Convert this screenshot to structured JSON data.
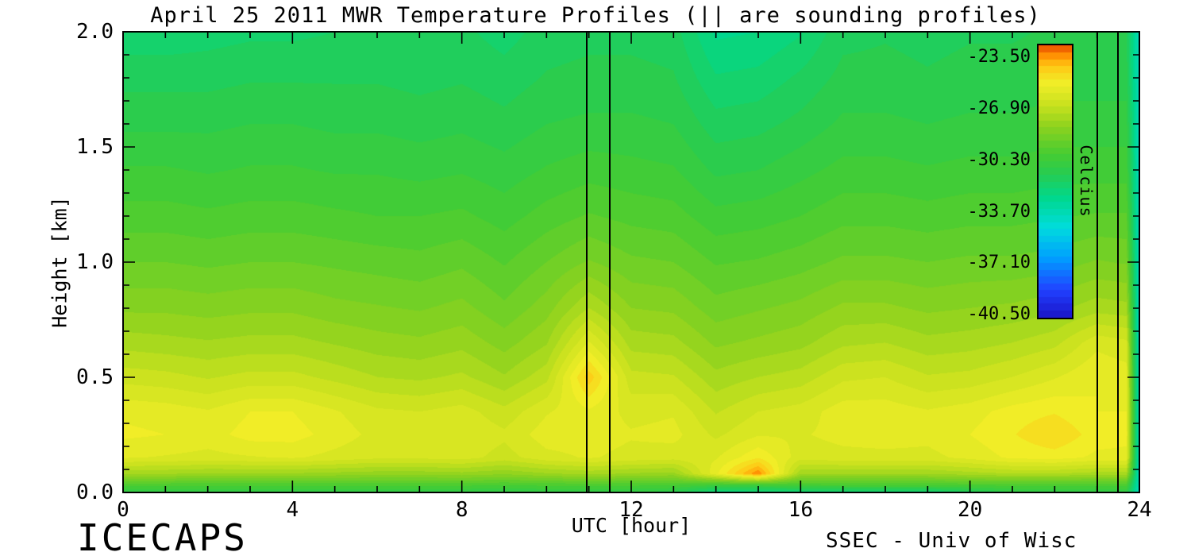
{
  "title": "April 25 2011 MWR Temperature Profiles (|| are sounding profiles)",
  "footer": {
    "left": "ICECAPS",
    "right": "SSEC - Univ of Wisc"
  },
  "chart_data": {
    "type": "heatmap",
    "title": "April 25 2011 MWR Temperature Profiles (|| are sounding profiles)",
    "xlabel": "UTC [hour]",
    "ylabel": "Height [km]",
    "value_units": "Celcius",
    "xlim": [
      0,
      24
    ],
    "ylim": [
      0,
      2
    ],
    "xticks": {
      "major": [
        0,
        4,
        8,
        12,
        16,
        20,
        24
      ],
      "labels": [
        "0",
        "4",
        "8",
        "12",
        "16",
        "20",
        "24"
      ],
      "minor_step": 1
    },
    "yticks": {
      "major": [
        0.0,
        0.5,
        1.0,
        1.5,
        2.0
      ],
      "labels": [
        "0.0",
        "0.5",
        "1.0",
        "1.5",
        "2.0"
      ],
      "minor_step": 0.1
    },
    "sounding_lines_x": [
      10.95,
      11.5,
      23.0,
      23.5
    ],
    "x": [
      0,
      1,
      2,
      3,
      4,
      5,
      6,
      7,
      8,
      9,
      10,
      11,
      12,
      13,
      14,
      15,
      16,
      17,
      18,
      19,
      20,
      21,
      22,
      23,
      23.7,
      24
    ],
    "y": [
      0.0,
      0.03,
      0.08,
      0.15,
      0.25,
      0.35,
      0.5,
      0.65,
      0.8,
      1.0,
      1.2,
      1.4,
      1.6,
      1.8,
      2.0
    ],
    "values": [
      [
        -30.8,
        -30.8,
        -30.8,
        -30.8,
        -30.8,
        -30.8,
        -30.8,
        -30.8,
        -30.8,
        -30.8,
        -30.8,
        -30.8,
        -30.8,
        -31.0,
        -32.4,
        -32.4,
        -32.2,
        -32.2,
        -32.2,
        -32.2,
        -31.5,
        -30.8,
        -30.8,
        -30.8,
        -30.8,
        -34.0
      ],
      [
        -29.8,
        -29.8,
        -29.8,
        -29.8,
        -29.8,
        -29.8,
        -29.8,
        -29.8,
        -29.8,
        -29.9,
        -29.8,
        -29.8,
        -29.8,
        -29.9,
        -30.3,
        -30.2,
        -30.0,
        -29.9,
        -29.9,
        -29.9,
        -29.8,
        -29.8,
        -29.8,
        -29.8,
        -29.8,
        -34.0
      ],
      [
        -27.6,
        -27.6,
        -27.7,
        -27.7,
        -27.7,
        -27.8,
        -27.9,
        -27.9,
        -27.8,
        -28.0,
        -27.7,
        -27.5,
        -27.7,
        -27.8,
        -25.5,
        -23.2,
        -27.6,
        -27.6,
        -27.6,
        -27.6,
        -27.4,
        -27.2,
        -27.2,
        -27.4,
        -27.4,
        -34.0
      ],
      [
        -25.8,
        -25.9,
        -26.0,
        -25.9,
        -25.8,
        -26.0,
        -26.2,
        -26.2,
        -26.1,
        -26.5,
        -26.0,
        -25.8,
        -26.0,
        -26.1,
        -25.9,
        -25.0,
        -26.1,
        -26.0,
        -26.0,
        -26.0,
        -25.7,
        -25.3,
        -25.2,
        -25.5,
        -25.5,
        -34.0
      ],
      [
        -25.3,
        -25.4,
        -25.6,
        -25.2,
        -25.2,
        -25.6,
        -26.0,
        -26.0,
        -25.9,
        -26.2,
        -25.6,
        -25.6,
        -25.8,
        -25.7,
        -26.4,
        -25.9,
        -25.9,
        -25.7,
        -25.6,
        -25.7,
        -25.4,
        -25.0,
        -24.5,
        -25.2,
        -25.3,
        -34.0
      ],
      [
        -25.5,
        -25.6,
        -25.8,
        -25.4,
        -25.4,
        -25.8,
        -26.2,
        -26.3,
        -26.1,
        -26.6,
        -25.9,
        -25.5,
        -26.0,
        -25.9,
        -26.8,
        -26.3,
        -26.1,
        -25.6,
        -25.6,
        -25.8,
        -25.6,
        -25.2,
        -25.0,
        -25.4,
        -25.4,
        -34.0
      ],
      [
        -26.5,
        -26.6,
        -26.8,
        -26.6,
        -26.6,
        -26.9,
        -27.2,
        -27.3,
        -27.1,
        -27.6,
        -26.9,
        -24.2,
        -26.6,
        -26.7,
        -27.5,
        -27.2,
        -27.0,
        -26.4,
        -26.3,
        -26.7,
        -26.6,
        -26.3,
        -25.9,
        -25.4,
        -25.6,
        -34.0
      ],
      [
        -27.4,
        -27.5,
        -27.6,
        -27.5,
        -27.5,
        -27.7,
        -27.9,
        -28.0,
        -27.8,
        -28.3,
        -27.7,
        -25.8,
        -27.4,
        -27.5,
        -28.2,
        -28.0,
        -27.8,
        -27.3,
        -27.2,
        -27.5,
        -27.4,
        -27.2,
        -26.9,
        -26.0,
        -26.2,
        -34.0
      ],
      [
        -28.2,
        -28.2,
        -28.3,
        -28.2,
        -28.2,
        -28.4,
        -28.5,
        -28.6,
        -28.4,
        -28.9,
        -28.3,
        -27.2,
        -28.1,
        -28.2,
        -28.8,
        -28.6,
        -28.4,
        -28.0,
        -28.0,
        -28.2,
        -28.1,
        -28.0,
        -27.8,
        -27.4,
        -27.5,
        -34.0
      ],
      [
        -29.0,
        -29.0,
        -29.1,
        -29.0,
        -29.0,
        -29.1,
        -29.2,
        -29.3,
        -29.1,
        -29.5,
        -29.0,
        -28.5,
        -28.9,
        -29.0,
        -29.5,
        -29.4,
        -29.2,
        -28.9,
        -28.9,
        -29.0,
        -28.9,
        -28.9,
        -28.8,
        -28.5,
        -28.6,
        -34.0
      ],
      [
        -29.7,
        -29.7,
        -29.8,
        -29.7,
        -29.7,
        -29.8,
        -29.9,
        -29.9,
        -29.8,
        -30.1,
        -29.7,
        -29.4,
        -29.6,
        -29.7,
        -30.2,
        -30.1,
        -29.9,
        -29.6,
        -29.6,
        -29.7,
        -29.6,
        -29.6,
        -29.5,
        -29.4,
        -29.4,
        -34.0
      ],
      [
        -30.3,
        -30.3,
        -30.4,
        -30.3,
        -30.3,
        -30.4,
        -30.4,
        -30.5,
        -30.4,
        -30.6,
        -30.3,
        -30.1,
        -30.2,
        -30.3,
        -30.9,
        -30.8,
        -30.5,
        -30.2,
        -30.2,
        -30.3,
        -30.2,
        -30.2,
        -30.1,
        -30.1,
        -30.1,
        -34.0
      ],
      [
        -30.9,
        -30.9,
        -30.9,
        -30.8,
        -30.8,
        -30.9,
        -30.9,
        -31.0,
        -30.9,
        -31.1,
        -30.8,
        -30.7,
        -30.7,
        -30.8,
        -31.5,
        -31.4,
        -31.1,
        -30.7,
        -30.7,
        -30.8,
        -30.7,
        -30.7,
        -30.6,
        -30.6,
        -30.6,
        -34.0
      ],
      [
        -31.4,
        -31.4,
        -31.4,
        -31.3,
        -31.3,
        -31.3,
        -31.3,
        -31.4,
        -31.3,
        -31.5,
        -31.2,
        -31.1,
        -31.1,
        -31.2,
        -32.1,
        -32.0,
        -31.6,
        -31.1,
        -31.1,
        -31.2,
        -31.1,
        -31.1,
        -31.0,
        -31.0,
        -31.0,
        -34.0
      ],
      [
        -32.0,
        -32.0,
        -31.9,
        -31.8,
        -31.8,
        -31.7,
        -31.6,
        -31.7,
        -31.6,
        -31.9,
        -31.5,
        -31.4,
        -31.4,
        -31.5,
        -32.7,
        -32.6,
        -32.2,
        -31.4,
        -31.3,
        -31.4,
        -31.3,
        -31.3,
        -31.2,
        -31.2,
        -31.2,
        -34.0
      ]
    ],
    "colorbar": {
      "title": "Celcius",
      "tick_labels": [
        "-23.50",
        "-26.90",
        "-30.30",
        "-33.70",
        "-37.10",
        "-40.50"
      ],
      "tick_values": [
        -23.5,
        -26.9,
        -30.3,
        -33.7,
        -37.1,
        -40.5
      ],
      "domain": [
        -40.7,
        -22.7
      ],
      "contour_step": 0.45,
      "stops": [
        [
          0.0,
          "#1a14c8"
        ],
        [
          0.1,
          "#2141ff"
        ],
        [
          0.22,
          "#00a0ff"
        ],
        [
          0.33,
          "#00dcdc"
        ],
        [
          0.44,
          "#00d88c"
        ],
        [
          0.53,
          "#28cc50"
        ],
        [
          0.6,
          "#46cc32"
        ],
        [
          0.7,
          "#8cd21e"
        ],
        [
          0.78,
          "#c8e11e"
        ],
        [
          0.86,
          "#f0ee28"
        ],
        [
          0.925,
          "#ffc814"
        ],
        [
          0.97,
          "#ff8700"
        ],
        [
          1.0,
          "#e64b00"
        ]
      ]
    }
  }
}
